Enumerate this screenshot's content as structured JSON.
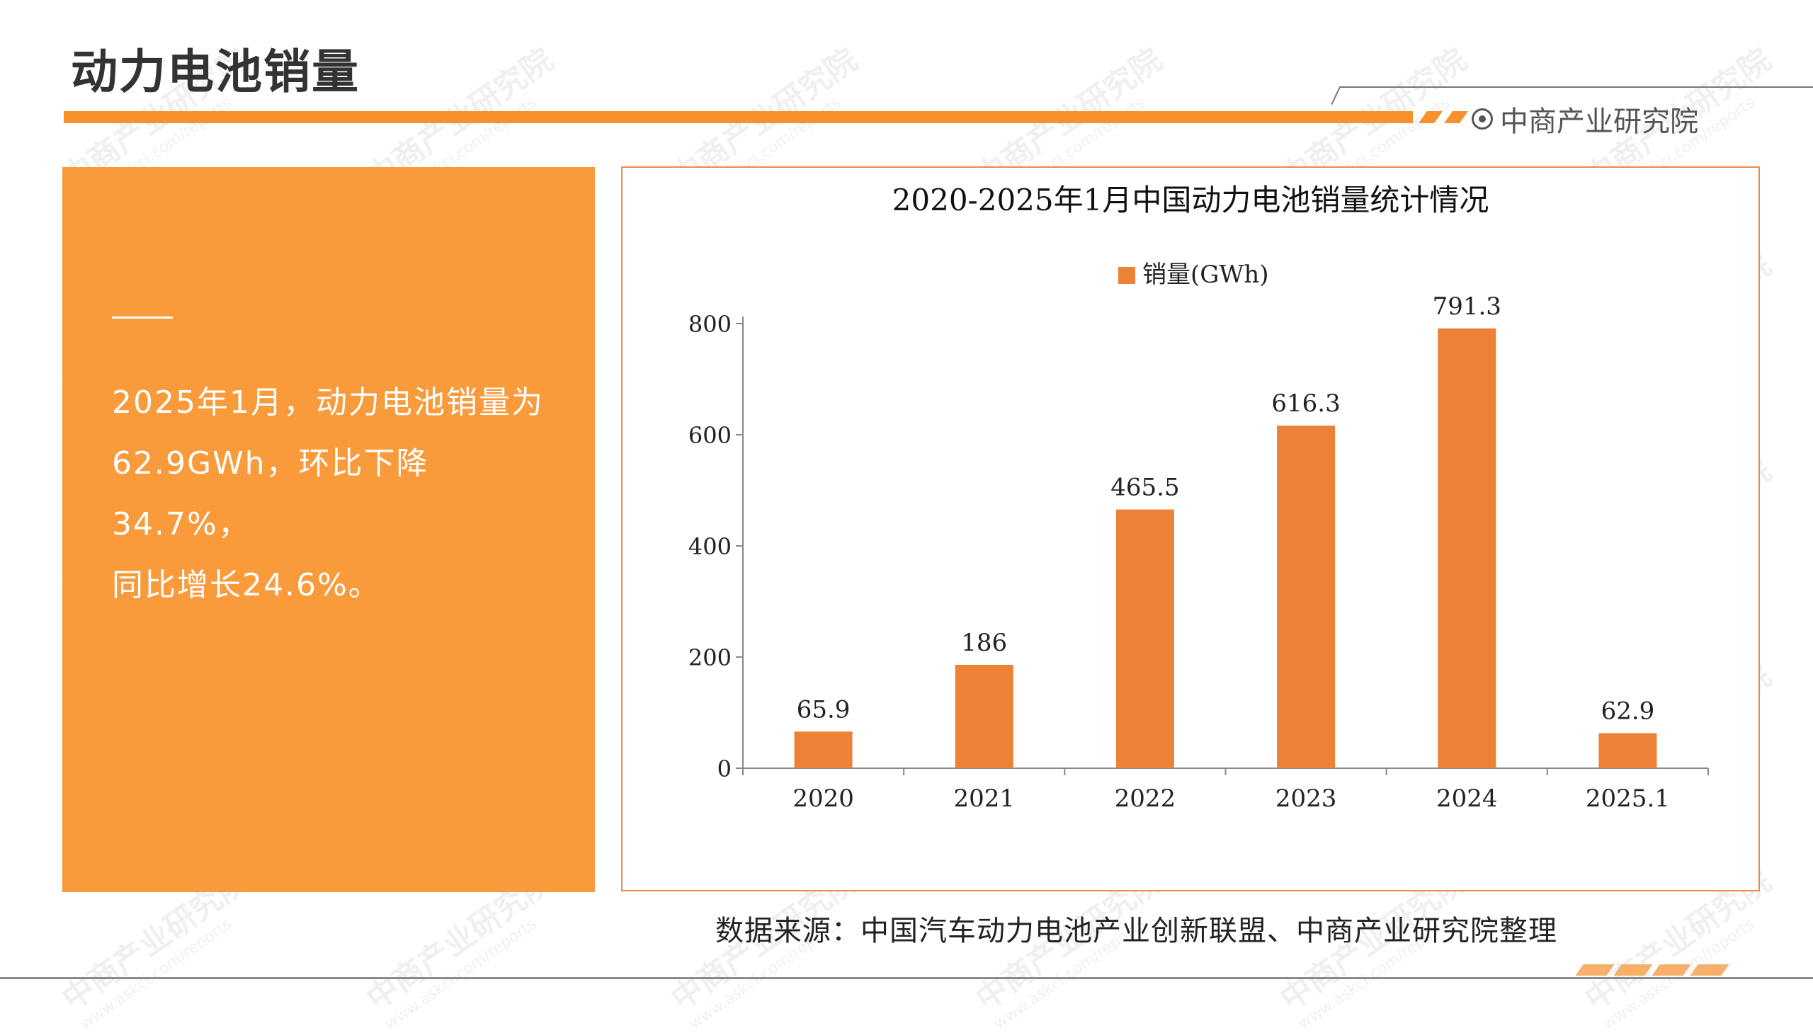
{
  "page": {
    "title": "动力电池销量",
    "brand": "中商产业研究院",
    "source": "数据来源：中国汽车动力电池产业创新联盟、中商产业研究院整理",
    "watermark": "中商产业研究院",
    "watermark_url": "www.askci.com/reports"
  },
  "summary": {
    "lines": [
      "2025年1月，动力电池销量为",
      "62.9GWh，环比下降34.7%，",
      "同比增长24.6%。"
    ]
  },
  "colors": {
    "accent": "#F6922E",
    "panel": "#F99A3B",
    "bar": "#ED8136",
    "frame": "#F08A4B"
  },
  "chart_data": {
    "type": "bar",
    "title": "2020-2025年1月中国动力电池销量统计情况",
    "categories": [
      "2020",
      "2021",
      "2022",
      "2023",
      "2024",
      "2025.1"
    ],
    "series": [
      {
        "name": "销量(GWh)",
        "values": [
          65.9,
          186,
          465.5,
          616.3,
          791.3,
          62.9
        ]
      }
    ],
    "data_labels": [
      "65.9",
      "186",
      "465.5",
      "616.3",
      "791.3",
      "62.9"
    ],
    "yticks": [
      0,
      200,
      400,
      600,
      800
    ],
    "ylim": [
      0,
      800
    ],
    "legend_position": "top-center",
    "grid": false
  }
}
